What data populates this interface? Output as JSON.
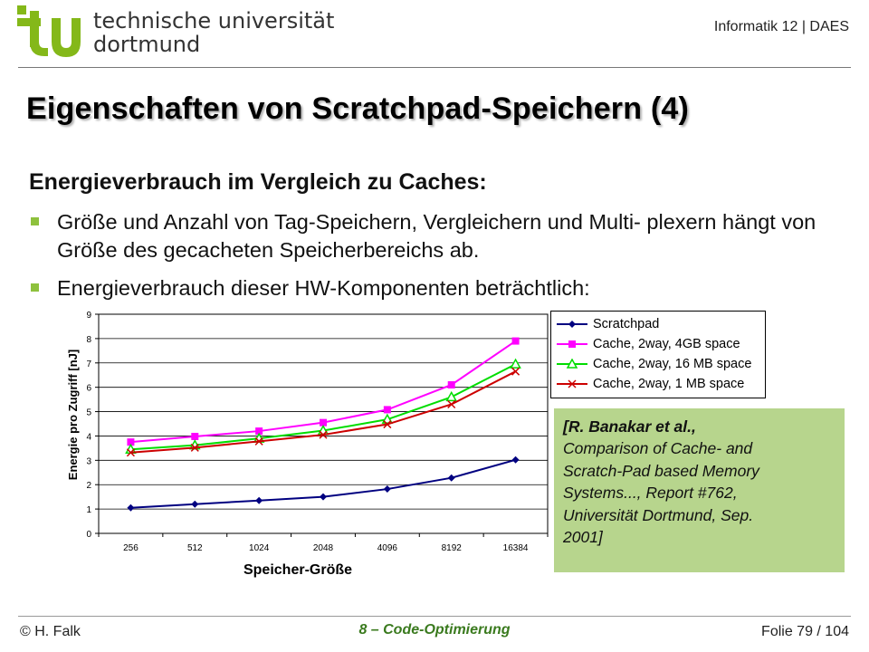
{
  "header": {
    "logo_text": [
      "technische universität",
      "dortmund"
    ],
    "course": "Informatik 12 | DAES",
    "brand_color": "#84b819"
  },
  "slide": {
    "title": "Eigenschaften von Scratchpad-Speichern (4)",
    "subtitle": "Energieverbrauch im Vergleich zu Caches:",
    "bullets": [
      "Größe und Anzahl von Tag-Speichern, Vergleichern und Multi- plexern hängt von Größe des gecacheten Speicherbereichs ab.",
      "Energieverbrauch dieser HW-Komponenten beträchtlich:"
    ]
  },
  "reference": {
    "lines": [
      {
        "text": "[R. Banakar et al.,",
        "bold": true
      },
      {
        "text": "Comparison of Cache- and",
        "bold": false
      },
      {
        "text": "Scratch-Pad based Memory",
        "bold": false
      },
      {
        "text": "Systems..., Report #762,",
        "bold": false
      },
      {
        "text": "Universität Dortmund, Sep.",
        "bold": false
      },
      {
        "text": "2001]",
        "bold": false
      }
    ],
    "background": "#b7d58d"
  },
  "footer": {
    "left": "© H. Falk",
    "center": "8 – Code-Optimierung",
    "right": "Folie 79 / 104"
  },
  "chart_data": {
    "type": "line",
    "xlabel": "Speicher-Größe",
    "ylabel": "Energie pro Zugriff  [nJ]",
    "categories": [
      "256",
      "512",
      "1024",
      "2048",
      "4096",
      "8192",
      "16384"
    ],
    "ylim": [
      0,
      9
    ],
    "yticks": [
      "0",
      "1",
      "2",
      "3",
      "4",
      "5",
      "6",
      "7",
      "8",
      "9"
    ],
    "grid": true,
    "legend_position": "right",
    "series": [
      {
        "name": "Scratchpad",
        "color": "#000080",
        "marker": "diamond",
        "values": [
          1.05,
          1.2,
          1.35,
          1.5,
          1.82,
          2.28,
          3.02
        ]
      },
      {
        "name": "Cache, 2way, 4GB space",
        "color": "#ff00ff",
        "marker": "square",
        "values": [
          3.75,
          3.98,
          4.2,
          4.55,
          5.08,
          6.1,
          7.9
        ]
      },
      {
        "name": "Cache, 2way, 16 MB space",
        "color": "#00dd00",
        "marker": "triangle",
        "values": [
          3.45,
          3.62,
          3.9,
          4.22,
          4.68,
          5.6,
          6.95
        ]
      },
      {
        "name": "Cache, 2way, 1 MB space",
        "color": "#cc0000",
        "marker": "x",
        "values": [
          3.32,
          3.52,
          3.78,
          4.05,
          4.48,
          5.3,
          6.65
        ]
      }
    ]
  }
}
